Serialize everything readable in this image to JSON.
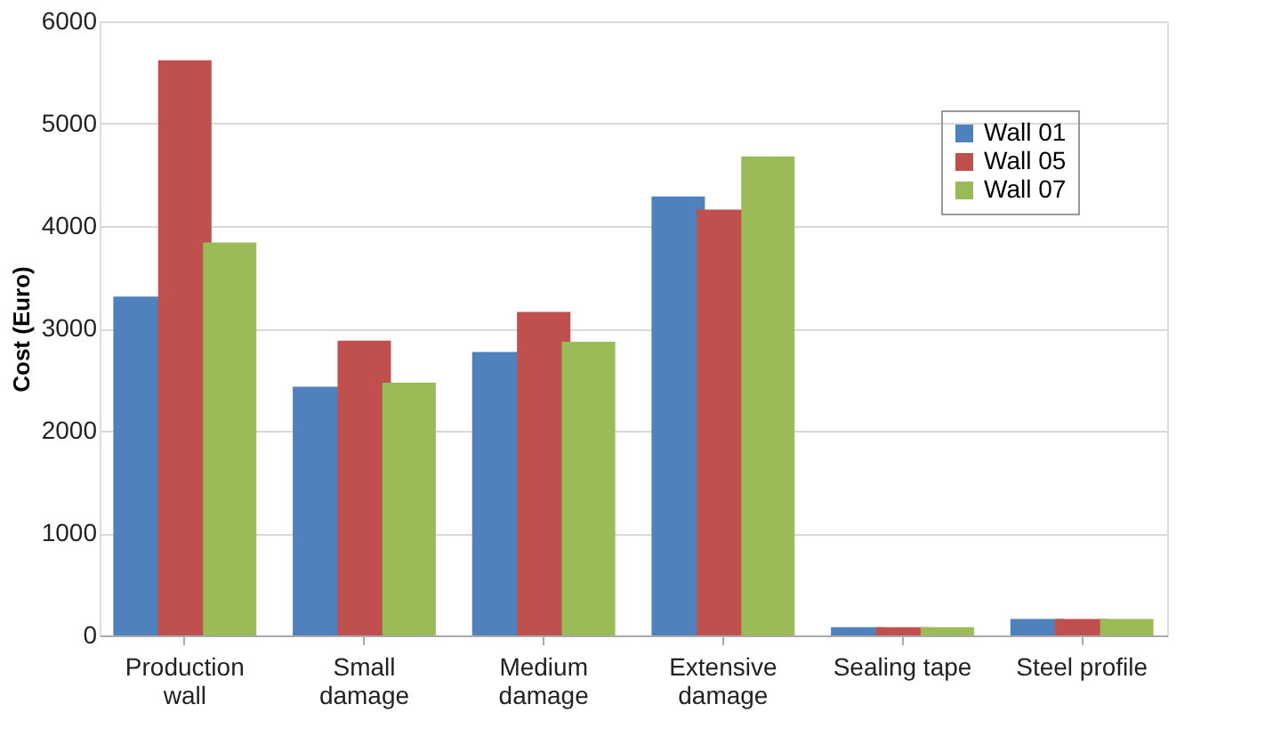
{
  "chart_data": {
    "type": "bar",
    "ylabel": "Cost (Euro)",
    "categories": [
      "Production\nwall",
      "Small\ndamage",
      "Medium\ndamage",
      "Extensive\ndamage",
      "Sealing tape",
      "Steel profile"
    ],
    "series": [
      {
        "name": "Wall 01",
        "color": "#4f81bd",
        "values": [
          3310,
          2430,
          2770,
          4290,
          80,
          160
        ]
      },
      {
        "name": "Wall 05",
        "color": "#c0504d",
        "values": [
          5620,
          2880,
          3160,
          4160,
          80,
          160
        ]
      },
      {
        "name": "Wall 07",
        "color": "#9bbb59",
        "values": [
          3840,
          2470,
          2870,
          4680,
          80,
          160
        ]
      }
    ],
    "ylim": [
      0,
      6000
    ],
    "yticks": [
      0,
      1000,
      2000,
      3000,
      4000,
      5000,
      6000
    ],
    "grid": "y",
    "legend": "top right"
  }
}
